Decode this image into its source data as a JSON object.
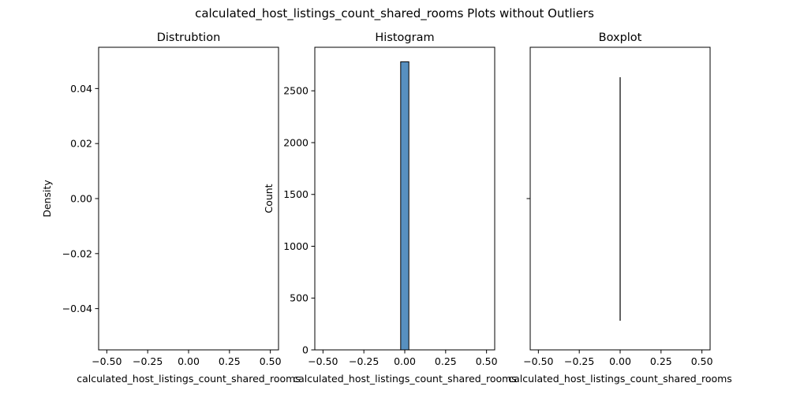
{
  "figure": {
    "suptitle": "calculated_host_listings_count_shared_rooms Plots without Outliers"
  },
  "chart_data": [
    {
      "type": "line",
      "title": "Distrubtion",
      "xlabel": "calculated_host_listings_count_shared_rooms",
      "ylabel": "Density",
      "xlim": [
        -0.55,
        0.55
      ],
      "ylim": [
        -0.055,
        0.055
      ],
      "xticks": [
        -0.5,
        -0.25,
        0.0,
        0.25,
        0.5
      ],
      "xtick_labels": [
        "−0.50",
        "−0.25",
        "0.00",
        "0.25",
        "0.50"
      ],
      "yticks": [
        -0.04,
        -0.02,
        0.0,
        0.02,
        0.04
      ],
      "ytick_labels": [
        "−0.04",
        "−0.02",
        "0.00",
        "0.02",
        "0.04"
      ],
      "series": [],
      "grid": false
    },
    {
      "type": "bar",
      "title": "Histogram",
      "xlabel": "calculated_host_listings_count_shared_rooms",
      "ylabel": "Count",
      "xlim": [
        -0.55,
        0.55
      ],
      "ylim": [
        0,
        2920
      ],
      "xticks": [
        -0.5,
        -0.25,
        0.0,
        0.25,
        0.5
      ],
      "xtick_labels": [
        "−0.50",
        "−0.25",
        "0.00",
        "0.25",
        "0.50"
      ],
      "yticks": [
        0,
        500,
        1000,
        1500,
        2000,
        2500
      ],
      "ytick_labels": [
        "0",
        "500",
        "1000",
        "1500",
        "2000",
        "2500"
      ],
      "bins": [
        {
          "x0": -0.025,
          "x1": 0.025,
          "value": 2780
        }
      ],
      "bar_color": "#5790c0",
      "grid": false
    },
    {
      "type": "box",
      "title": "Boxplot",
      "xlabel": "calculated_host_listings_count_shared_rooms",
      "ylabel": "",
      "xlim": [
        -0.55,
        0.55
      ],
      "xticks": [
        -0.5,
        -0.25,
        0.0,
        0.25,
        0.5
      ],
      "xtick_labels": [
        "−0.50",
        "−0.25",
        "0.00",
        "0.25",
        "0.50"
      ],
      "box": {
        "min": 0,
        "q1": 0,
        "median": 0,
        "q3": 0,
        "max": 0
      },
      "grid": false
    }
  ]
}
